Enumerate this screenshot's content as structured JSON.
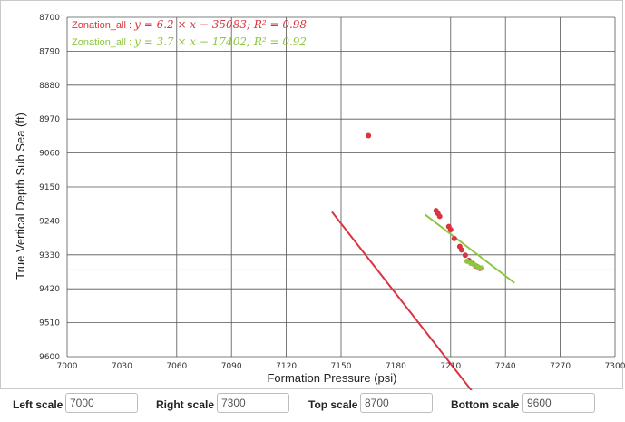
{
  "chart_data": {
    "type": "scatter",
    "xlabel": "Formation Pressure (psi)",
    "ylabel": "True Vertical Depth Sub Sea (ft)",
    "xlim": [
      7000,
      7300
    ],
    "ylim": [
      8700,
      9600
    ],
    "y_inverted": true,
    "grid": true,
    "x_ticks": [
      7000,
      7030,
      7060,
      7090,
      7120,
      7150,
      7180,
      7210,
      7240,
      7270,
      7300
    ],
    "y_ticks": [
      8700,
      8790,
      8880,
      8970,
      9060,
      9150,
      9240,
      9330,
      9420,
      9510,
      9600
    ],
    "reference_line_y": 9370,
    "series": [
      {
        "name": "Zonation_all",
        "color": "#d9343f",
        "equation_prefix": "Zonation_all : ",
        "equation": "y = 6.2 × x − 35083; R² = 0.98",
        "points": [
          [
            7165,
            9014
          ],
          [
            7202,
            9213
          ],
          [
            7203,
            9220
          ],
          [
            7204,
            9228
          ],
          [
            7209,
            9255
          ],
          [
            7210,
            9263
          ],
          [
            7212,
            9287
          ],
          [
            7215,
            9308
          ],
          [
            7216,
            9317
          ],
          [
            7218,
            9331
          ],
          [
            7220,
            9345
          ],
          [
            7222,
            9353
          ],
          [
            7224,
            9360
          ],
          [
            7226,
            9366
          ]
        ],
        "fit": {
          "slope": 6.2,
          "intercept": -35083,
          "x_range": [
            7145,
            7238
          ]
        }
      },
      {
        "name": "Zonation_all",
        "color": "#8dc63f",
        "equation_prefix": "Zonation_all : ",
        "equation": "y = 3.7 × x − 17402; R² = 0.92",
        "points": [
          [
            7219,
            9347
          ],
          [
            7221,
            9352
          ],
          [
            7223,
            9357
          ],
          [
            7225,
            9362
          ],
          [
            7227,
            9365
          ]
        ],
        "fit": {
          "slope": 3.7,
          "intercept": -17402,
          "x_range": [
            7196,
            7245
          ]
        }
      }
    ]
  },
  "controls": {
    "left_scale_label": "Left scale",
    "left_scale_value": "7000",
    "right_scale_label": "Right scale",
    "right_scale_value": "7300",
    "top_scale_label": "Top scale",
    "top_scale_value": "8700",
    "bottom_scale_label": "Bottom scale",
    "bottom_scale_value": "9600"
  }
}
